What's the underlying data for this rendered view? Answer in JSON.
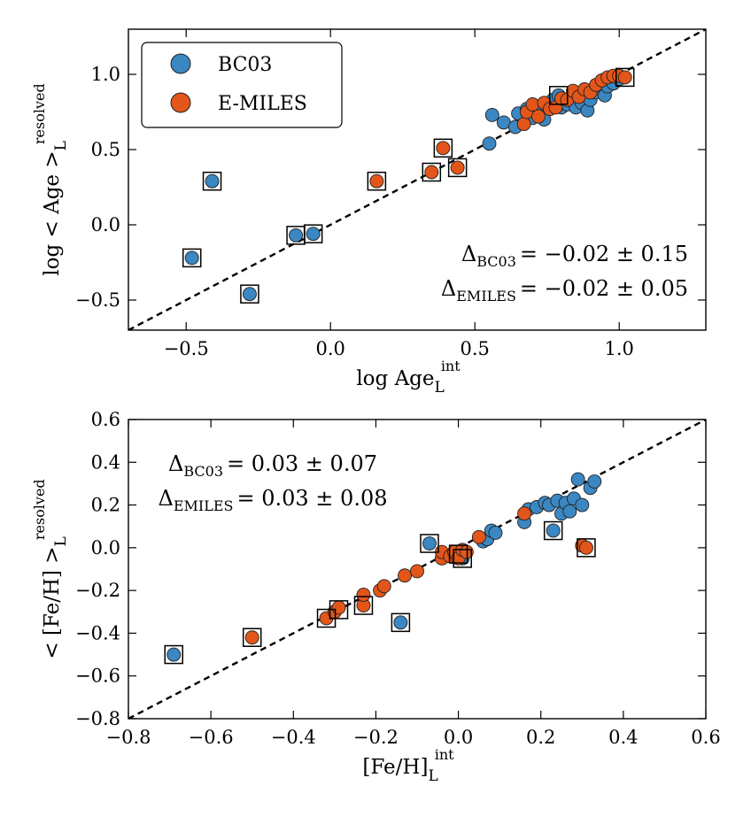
{
  "colors": {
    "bc03": "#3a87c2",
    "emiles": "#e3561a"
  },
  "chart_data": [
    {
      "id": "age",
      "type": "scatter",
      "xlabel": {
        "main": "log Age",
        "sub": "L",
        "sup": "int"
      },
      "ylabel": {
        "main": "log < Age >",
        "sub": "L",
        "sup": "resolved"
      },
      "xlim": [
        -0.7,
        1.3
      ],
      "ylim": [
        -0.7,
        1.3
      ],
      "xticks": [
        -0.5,
        0.0,
        0.5,
        1.0
      ],
      "xtick_labels": [
        "−0.5",
        "0.0",
        "0.5",
        "1.0"
      ],
      "yticks": [
        -0.5,
        0.0,
        0.5,
        1.0
      ],
      "ytick_labels": [
        "−0.5",
        "0.0",
        "0.5",
        "1.0"
      ],
      "one_to_one_line": true,
      "legend": {
        "placement": "top-left",
        "entries": [
          {
            "label": "BC03",
            "color_key": "bc03"
          },
          {
            "label": "E-MILES",
            "color_key": "emiles"
          }
        ]
      },
      "stats": [
        {
          "prefix": "Δ",
          "sub": "BC03",
          "value": "= −0.02 ± 0.15"
        },
        {
          "prefix": "Δ",
          "sub": "EMILES",
          "value": "= −0.02 ± 0.05"
        }
      ],
      "stats_placement": "bottom-right",
      "series": [
        {
          "name": "BC03",
          "color_key": "bc03",
          "points": [
            [
              -0.48,
              -0.22
            ],
            [
              -0.41,
              0.29
            ],
            [
              -0.28,
              -0.46
            ],
            [
              -0.12,
              -0.07
            ],
            [
              -0.06,
              -0.06
            ],
            [
              0.55,
              0.54
            ],
            [
              0.56,
              0.73
            ],
            [
              0.6,
              0.68
            ],
            [
              0.64,
              0.65
            ],
            [
              0.65,
              0.74
            ],
            [
              0.68,
              0.77
            ],
            [
              0.7,
              0.71
            ],
            [
              0.73,
              0.75
            ],
            [
              0.74,
              0.7
            ],
            [
              0.75,
              0.79
            ],
            [
              0.77,
              0.83
            ],
            [
              0.79,
              0.86
            ],
            [
              0.8,
              0.78
            ],
            [
              0.82,
              0.8
            ],
            [
              0.84,
              0.82
            ],
            [
              0.85,
              0.78
            ],
            [
              0.86,
              0.86
            ],
            [
              0.87,
              0.81
            ],
            [
              0.89,
              0.76
            ],
            [
              0.9,
              0.83
            ],
            [
              0.92,
              0.88
            ],
            [
              0.94,
              0.9
            ],
            [
              0.95,
              0.86
            ],
            [
              0.96,
              0.92
            ],
            [
              0.98,
              0.94
            ],
            [
              1.0,
              0.97
            ]
          ],
          "boxed": [
            [
              -0.48,
              -0.22
            ],
            [
              -0.41,
              0.29
            ],
            [
              -0.28,
              -0.46
            ],
            [
              -0.12,
              -0.07
            ],
            [
              -0.06,
              -0.06
            ],
            [
              0.79,
              0.86
            ]
          ]
        },
        {
          "name": "E-MILES",
          "color_key": "emiles",
          "points": [
            [
              0.16,
              0.29
            ],
            [
              0.35,
              0.35
            ],
            [
              0.39,
              0.51
            ],
            [
              0.44,
              0.38
            ],
            [
              0.67,
              0.67
            ],
            [
              0.68,
              0.75
            ],
            [
              0.7,
              0.8
            ],
            [
              0.72,
              0.72
            ],
            [
              0.74,
              0.81
            ],
            [
              0.76,
              0.77
            ],
            [
              0.78,
              0.78
            ],
            [
              0.8,
              0.84
            ],
            [
              0.82,
              0.83
            ],
            [
              0.84,
              0.89
            ],
            [
              0.86,
              0.85
            ],
            [
              0.88,
              0.9
            ],
            [
              0.9,
              0.88
            ],
            [
              0.92,
              0.93
            ],
            [
              0.94,
              0.96
            ],
            [
              0.96,
              0.98
            ],
            [
              0.98,
              0.99
            ],
            [
              1.0,
              0.99
            ],
            [
              1.02,
              0.98
            ]
          ],
          "boxed": [
            [
              0.16,
              0.29
            ],
            [
              0.35,
              0.35
            ],
            [
              0.39,
              0.51
            ],
            [
              0.44,
              0.38
            ],
            [
              1.02,
              0.98
            ]
          ]
        }
      ]
    },
    {
      "id": "feh",
      "type": "scatter",
      "xlabel": {
        "main": "[Fe/H]",
        "sub": "L",
        "sup": "int"
      },
      "ylabel": {
        "main": "< [Fe/H] >",
        "sub": "L",
        "sup": "resolved"
      },
      "xlim": [
        -0.8,
        0.6
      ],
      "ylim": [
        -0.8,
        0.6
      ],
      "xticks": [
        -0.8,
        -0.6,
        -0.4,
        -0.2,
        0.0,
        0.2,
        0.4,
        0.6
      ],
      "xtick_labels": [
        "−0.8",
        "−0.6",
        "−0.4",
        "−0.2",
        "0.0",
        "0.2",
        "0.4",
        "0.6"
      ],
      "yticks": [
        -0.8,
        -0.6,
        -0.4,
        -0.2,
        0.0,
        0.2,
        0.4,
        0.6
      ],
      "ytick_labels": [
        "−0.8",
        "−0.6",
        "−0.4",
        "−0.2",
        "0.0",
        "0.2",
        "0.4",
        "0.6"
      ],
      "one_to_one_line": true,
      "stats": [
        {
          "prefix": "Δ",
          "sub": "BC03",
          "value": "= 0.03 ± 0.07"
        },
        {
          "prefix": "Δ",
          "sub": "EMILES",
          "value": "= 0.03 ± 0.08"
        }
      ],
      "stats_placement": "top-left",
      "series": [
        {
          "name": "BC03",
          "color_key": "bc03",
          "points": [
            [
              -0.69,
              -0.5
            ],
            [
              -0.14,
              -0.35
            ],
            [
              -0.07,
              0.02
            ],
            [
              0.0,
              -0.03
            ],
            [
              0.01,
              -0.05
            ],
            [
              0.06,
              0.03
            ],
            [
              0.07,
              0.04
            ],
            [
              0.08,
              0.08
            ],
            [
              0.09,
              0.07
            ],
            [
              0.16,
              0.12
            ],
            [
              0.17,
              0.18
            ],
            [
              0.19,
              0.19
            ],
            [
              0.21,
              0.21
            ],
            [
              0.22,
              0.2
            ],
            [
              0.23,
              0.08
            ],
            [
              0.24,
              0.22
            ],
            [
              0.25,
              0.16
            ],
            [
              0.26,
              0.21
            ],
            [
              0.27,
              0.17
            ],
            [
              0.28,
              0.23
            ],
            [
              0.29,
              0.32
            ],
            [
              0.3,
              0.2
            ],
            [
              0.32,
              0.28
            ],
            [
              0.33,
              0.31
            ]
          ],
          "boxed": [
            [
              -0.69,
              -0.5
            ],
            [
              -0.14,
              -0.35
            ],
            [
              -0.07,
              0.02
            ],
            [
              0.0,
              -0.03
            ],
            [
              0.01,
              -0.05
            ],
            [
              0.23,
              0.08
            ]
          ]
        },
        {
          "name": "E-MILES",
          "color_key": "emiles",
          "points": [
            [
              -0.5,
              -0.42
            ],
            [
              -0.32,
              -0.33
            ],
            [
              -0.3,
              -0.3
            ],
            [
              -0.29,
              -0.28
            ],
            [
              -0.23,
              -0.27
            ],
            [
              -0.23,
              -0.22
            ],
            [
              -0.19,
              -0.2
            ],
            [
              -0.18,
              -0.18
            ],
            [
              -0.13,
              -0.13
            ],
            [
              -0.1,
              -0.11
            ],
            [
              -0.04,
              -0.05
            ],
            [
              -0.04,
              -0.02
            ],
            [
              -0.02,
              -0.04
            ],
            [
              -0.01,
              -0.02
            ],
            [
              0.0,
              -0.05
            ],
            [
              0.01,
              -0.01
            ],
            [
              0.02,
              -0.02
            ],
            [
              0.05,
              0.05
            ],
            [
              0.16,
              0.16
            ],
            [
              0.3,
              0.01
            ],
            [
              0.31,
              0.0
            ]
          ],
          "boxed": [
            [
              -0.5,
              -0.42
            ],
            [
              -0.32,
              -0.33
            ],
            [
              -0.29,
              -0.29
            ],
            [
              -0.23,
              -0.27
            ],
            [
              0.31,
              0.0
            ]
          ]
        }
      ]
    }
  ]
}
